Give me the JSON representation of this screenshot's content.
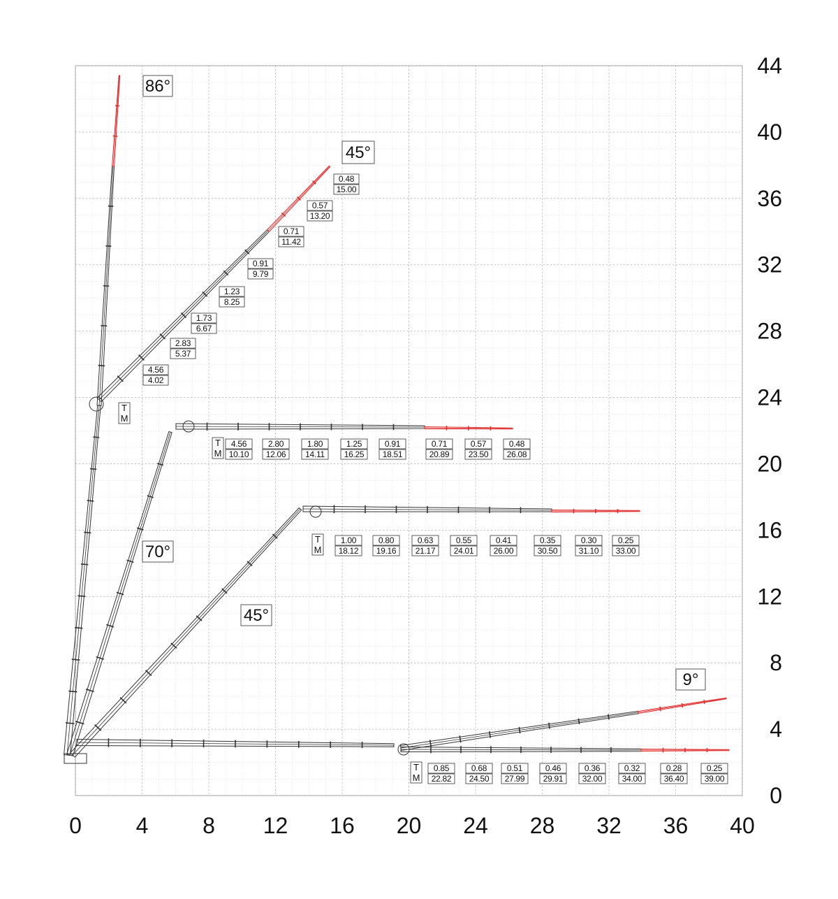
{
  "chart_data": {
    "type": "diagram",
    "x_ticks": [
      "0",
      "4",
      "8",
      "12",
      "16",
      "20",
      "24",
      "28",
      "32",
      "36",
      "40"
    ],
    "y_ticks": [
      "0",
      "4",
      "8",
      "12",
      "16",
      "20",
      "24",
      "28",
      "32",
      "36",
      "40",
      "44"
    ],
    "xlim": [
      0,
      40
    ],
    "ylim": [
      0,
      44
    ],
    "grid": true,
    "angle_labels": [
      "86°",
      "45°",
      "70°",
      "45°",
      "9°"
    ],
    "load_rows": [
      {
        "name": "86-45",
        "tm_labels": [
          "T",
          "M"
        ],
        "entries": [
          {
            "t": "4.56",
            "m": "4.02"
          },
          {
            "t": "2.83",
            "m": "5.37"
          },
          {
            "t": "1.73",
            "m": "6.67"
          },
          {
            "t": "1.23",
            "m": "8.25"
          },
          {
            "t": "0.91",
            "m": "9.79"
          },
          {
            "t": "0.71",
            "m": "11.42"
          },
          {
            "t": "0.57",
            "m": "13.20"
          },
          {
            "t": "0.48",
            "m": "15.00"
          }
        ]
      },
      {
        "name": "70",
        "tm_labels": [
          "T",
          "M"
        ],
        "entries": [
          {
            "t": "4.56",
            "m": "10.10"
          },
          {
            "t": "2.80",
            "m": "12.06"
          },
          {
            "t": "1.80",
            "m": "14.11"
          },
          {
            "t": "1.25",
            "m": "16.25"
          },
          {
            "t": "0.91",
            "m": "18.51"
          },
          {
            "t": "0.71",
            "m": "20.89"
          },
          {
            "t": "0.57",
            "m": "23.50"
          },
          {
            "t": "0.48",
            "m": "26.08"
          }
        ]
      },
      {
        "name": "45",
        "tm_labels": [
          "T",
          "M"
        ],
        "entries": [
          {
            "t": "1.00",
            "m": "18.12"
          },
          {
            "t": "0.80",
            "m": "19.16"
          },
          {
            "t": "0.63",
            "m": "21.17"
          },
          {
            "t": "0.55",
            "m": "24.01"
          },
          {
            "t": "0.41",
            "m": "26.00"
          },
          {
            "t": "0.35",
            "m": "30.50"
          },
          {
            "t": "0.30",
            "m": "31.10"
          },
          {
            "t": "0.25",
            "m": "33.00"
          }
        ]
      },
      {
        "name": "9",
        "tm_labels": [
          "T",
          "M"
        ],
        "entries": [
          {
            "t": "0.85",
            "m": "22.82"
          },
          {
            "t": "0.68",
            "m": "24.50"
          },
          {
            "t": "0.51",
            "m": "27.99"
          },
          {
            "t": "0.46",
            "m": "29.91"
          },
          {
            "t": "0.36",
            "m": "32.00"
          },
          {
            "t": "0.32",
            "m": "34.00"
          },
          {
            "t": "0.28",
            "m": "36.40"
          },
          {
            "t": "0.25",
            "m": "39.00"
          }
        ]
      }
    ],
    "colors": {
      "boom": "#333333",
      "jib_extension": "#e03030",
      "grid": "#bbbbbb"
    }
  }
}
